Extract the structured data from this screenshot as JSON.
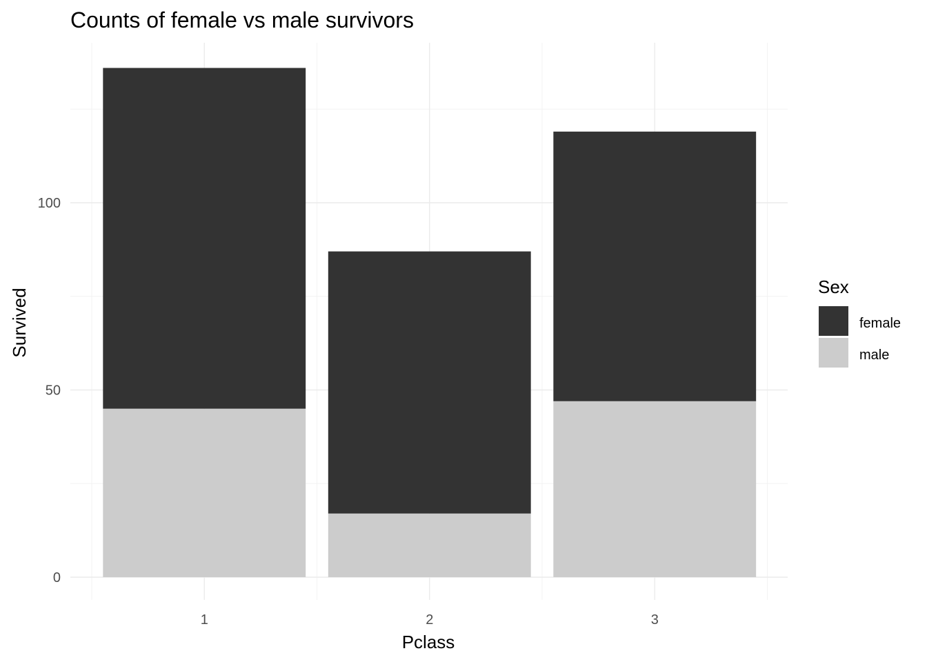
{
  "chart_data": {
    "type": "bar",
    "stacked": true,
    "title": "Counts of female vs male survivors",
    "xlabel": "Pclass",
    "ylabel": "Survived",
    "categories": [
      "1",
      "2",
      "3"
    ],
    "y_ticks": [
      0,
      50,
      100
    ],
    "ylim": [
      0,
      136
    ],
    "grid": true,
    "series": [
      {
        "name": "female",
        "values": [
          91,
          70,
          72
        ],
        "color": "#333333"
      },
      {
        "name": "male",
        "values": [
          45,
          17,
          47
        ],
        "color": "#cccccc"
      }
    ],
    "legend": {
      "title": "Sex",
      "position": "right",
      "entries": [
        "female",
        "male"
      ]
    }
  }
}
